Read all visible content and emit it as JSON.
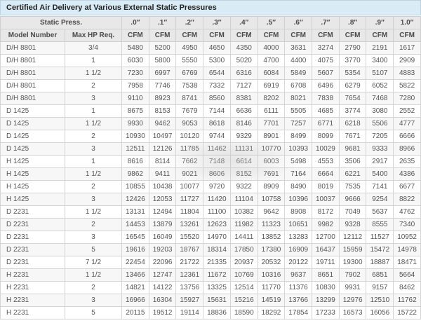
{
  "title": "Certified Air Delivery at Various External Static Pressures",
  "colors": {
    "title_bar_bg": "#d9ecf6",
    "header_bg": "#e8e8e8",
    "stripe_bg": "#f7f7f7",
    "border": "#d4d4d4"
  },
  "table": {
    "static_press_label": "Static Press.",
    "pressure_headers": [
      ".0″",
      ".1″",
      ".2″",
      ".3″",
      ".4″",
      ".5″",
      ".6″",
      ".7″",
      ".8″",
      ".9″",
      "1.0″"
    ],
    "model_header": "Model Number",
    "hp_header": "Max HP Req.",
    "unit_label": "CFM",
    "rows": [
      {
        "model": "D/H 8801",
        "max_hp": "3/4",
        "cfm": [
          5480,
          5200,
          4950,
          4650,
          4350,
          4000,
          3631,
          3274,
          2790,
          2191,
          1617
        ]
      },
      {
        "model": "D/H 8801",
        "max_hp": "1",
        "cfm": [
          6030,
          5800,
          5550,
          5300,
          5020,
          4700,
          4400,
          4075,
          3770,
          3400,
          2909
        ]
      },
      {
        "model": "D/H 8801",
        "max_hp": "1 1/2",
        "cfm": [
          7230,
          6997,
          6769,
          6544,
          6316,
          6084,
          5849,
          5607,
          5354,
          5107,
          4883
        ]
      },
      {
        "model": "D/H 8801",
        "max_hp": "2",
        "cfm": [
          7958,
          7746,
          7538,
          7332,
          7127,
          6919,
          6708,
          6496,
          6279,
          6052,
          5822
        ]
      },
      {
        "model": "D/H 8801",
        "max_hp": "3",
        "cfm": [
          9110,
          8923,
          8741,
          8560,
          8381,
          8202,
          8021,
          7838,
          7654,
          7468,
          7280
        ]
      },
      {
        "model": "D 1425",
        "max_hp": "1",
        "cfm": [
          8675,
          8153,
          7679,
          7144,
          6636,
          6111,
          5505,
          4685,
          3774,
          3080,
          2552
        ]
      },
      {
        "model": "D 1425",
        "max_hp": "1 1/2",
        "cfm": [
          9930,
          9462,
          9053,
          8618,
          8146,
          7701,
          7257,
          6771,
          6218,
          5506,
          4777
        ]
      },
      {
        "model": "D 1425",
        "max_hp": "2",
        "cfm": [
          10930,
          10497,
          10120,
          9744,
          9329,
          8901,
          8499,
          8099,
          7671,
          7205,
          6666
        ]
      },
      {
        "model": "D 1425",
        "max_hp": "3",
        "cfm": [
          12511,
          12126,
          11785,
          11462,
          11131,
          10770,
          10393,
          10029,
          9681,
          9333,
          8966
        ]
      },
      {
        "model": "H 1425",
        "max_hp": "1",
        "cfm": [
          8616,
          8114,
          7662,
          7148,
          6614,
          6003,
          5498,
          4553,
          3506,
          2917,
          2635
        ]
      },
      {
        "model": "H 1425",
        "max_hp": "1 1/2",
        "cfm": [
          9862,
          9411,
          9021,
          8606,
          8152,
          7691,
          7164,
          6664,
          6221,
          5400,
          4386
        ]
      },
      {
        "model": "H 1425",
        "max_hp": "2",
        "cfm": [
          10855,
          10438,
          10077,
          9720,
          9322,
          8909,
          8490,
          8019,
          7535,
          7141,
          6677
        ]
      },
      {
        "model": "H 1425",
        "max_hp": "3",
        "cfm": [
          12426,
          12053,
          11727,
          11420,
          11104,
          10758,
          10396,
          10037,
          9666,
          9254,
          8822
        ]
      },
      {
        "model": "D 2231",
        "max_hp": "1 1/2",
        "cfm": [
          13131,
          12494,
          11804,
          11100,
          10382,
          9642,
          8908,
          8172,
          7049,
          5637,
          4762
        ]
      },
      {
        "model": "D 2231",
        "max_hp": "2",
        "cfm": [
          14453,
          13879,
          13261,
          12623,
          11982,
          11323,
          10651,
          9982,
          9328,
          8555,
          7340
        ]
      },
      {
        "model": "D 2231",
        "max_hp": "3",
        "cfm": [
          16545,
          16049,
          15520,
          14970,
          14411,
          13852,
          13283,
          12700,
          12112,
          11527,
          10952
        ]
      },
      {
        "model": "D 2231",
        "max_hp": "5",
        "cfm": [
          19616,
          19203,
          18767,
          18314,
          17850,
          17380,
          16909,
          16437,
          15959,
          15472,
          14978
        ]
      },
      {
        "model": "D 2231",
        "max_hp": "7 1/2",
        "cfm": [
          22454,
          22096,
          21722,
          21335,
          20937,
          20532,
          20122,
          19711,
          19300,
          18887,
          18471
        ]
      },
      {
        "model": "H 2231",
        "max_hp": "1 1/2",
        "cfm": [
          13466,
          12747,
          12361,
          11672,
          10769,
          10316,
          9637,
          8651,
          7902,
          6851,
          5664
        ]
      },
      {
        "model": "H 2231",
        "max_hp": "2",
        "cfm": [
          14821,
          14122,
          13756,
          13325,
          12514,
          11770,
          11376,
          10830,
          9931,
          9157,
          8462
        ]
      },
      {
        "model": "H 2231",
        "max_hp": "3",
        "cfm": [
          16966,
          16304,
          15927,
          15631,
          15216,
          14519,
          13766,
          13299,
          12976,
          12510,
          11762
        ]
      },
      {
        "model": "H 2231",
        "max_hp": "5",
        "cfm": [
          20115,
          19512,
          19114,
          18836,
          18590,
          18292,
          17854,
          17233,
          16573,
          16056,
          15722
        ]
      }
    ]
  }
}
